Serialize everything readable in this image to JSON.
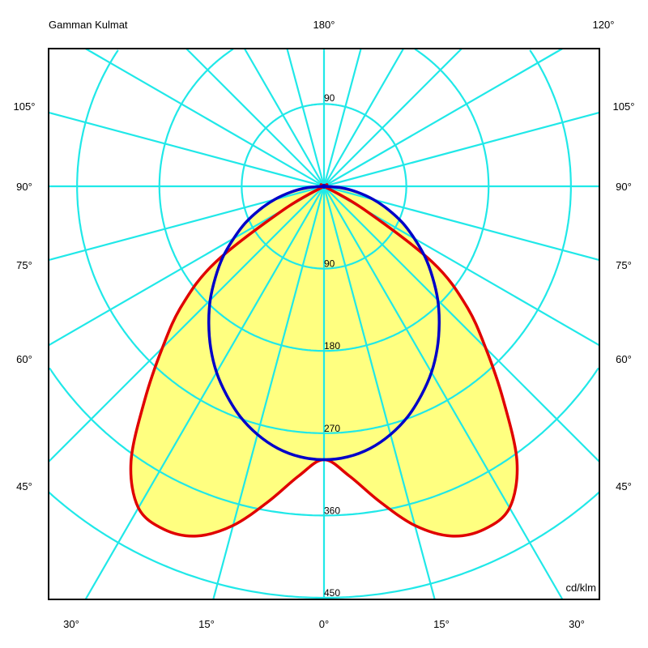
{
  "chart_data": {
    "type": "polar",
    "title": "Gamman Kulmat",
    "unit_label": "cd/klm",
    "top_labels": {
      "center": "180°",
      "right": "120°"
    },
    "side_labels": [
      "105°",
      "90°",
      "75°",
      "60°",
      "45°"
    ],
    "bottom_labels": [
      "30°",
      "15°",
      "0°",
      "15°",
      "30°"
    ],
    "radial_ticks": [
      90,
      180,
      270,
      360,
      450
    ],
    "radial_tick_labels": [
      "90",
      "180",
      "270",
      "360",
      "450"
    ],
    "upper_tick_label": "90",
    "rmax": 450,
    "angle_grid_step_deg": 15,
    "grid": true,
    "symmetric": true,
    "gamma_deg": [
      0,
      5,
      10,
      15,
      20,
      25,
      30,
      35,
      40,
      45,
      50,
      55,
      60,
      65,
      70,
      75,
      80,
      85,
      90
    ],
    "series": [
      {
        "color": "#e00000",
        "values": [
          299,
          318,
          350,
          384,
          407,
          414,
          406,
          368,
          305,
          250,
          203,
          145,
          50,
          0,
          0,
          0,
          0,
          0,
          0
        ]
      },
      {
        "color": "#0000c8",
        "values": [
          299,
          297,
          291,
          281,
          268,
          252,
          235,
          216,
          196,
          176,
          155,
          135,
          114,
          95,
          75,
          56,
          37,
          19,
          0
        ]
      }
    ],
    "colors": {
      "grid": "#20e8e8",
      "fill": "#ffff80",
      "frame": "#000000"
    }
  }
}
